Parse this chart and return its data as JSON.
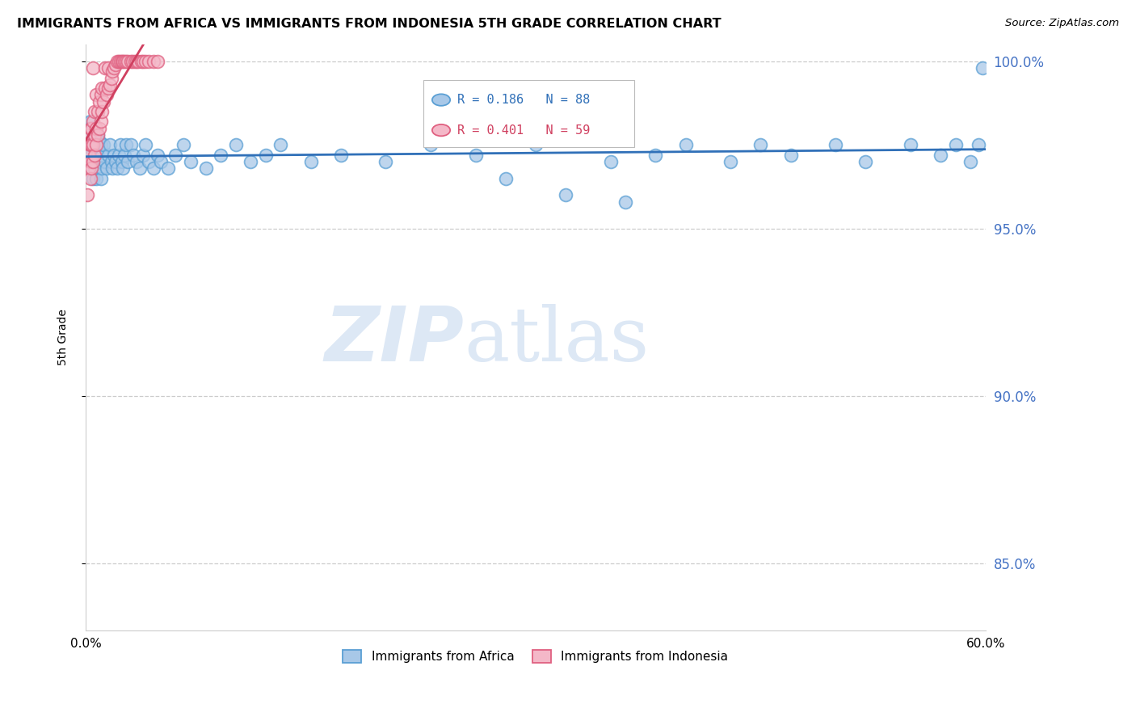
{
  "title": "IMMIGRANTS FROM AFRICA VS IMMIGRANTS FROM INDONESIA 5TH GRADE CORRELATION CHART",
  "source": "Source: ZipAtlas.com",
  "ylabel": "5th Grade",
  "xlim": [
    0.0,
    0.6
  ],
  "ylim": [
    0.83,
    1.005
  ],
  "yticks": [
    0.85,
    0.9,
    0.95,
    1.0
  ],
  "ytick_labels": [
    "85.0%",
    "90.0%",
    "95.0%",
    "100.0%"
  ],
  "xticks": [
    0.0,
    0.1,
    0.2,
    0.3,
    0.4,
    0.5,
    0.6
  ],
  "xtick_labels": [
    "0.0%",
    "",
    "",
    "",
    "",
    "",
    "60.0%"
  ],
  "legend_africa": "Immigrants from Africa",
  "legend_indonesia": "Immigrants from Indonesia",
  "R_africa": 0.186,
  "N_africa": 88,
  "R_indonesia": 0.401,
  "N_indonesia": 59,
  "africa_color": "#a8c8e8",
  "africa_edge": "#5a9fd4",
  "indonesia_color": "#f4b8c8",
  "indonesia_edge": "#e06080",
  "trendline_africa_color": "#3070b8",
  "trendline_indonesia_color": "#d04060",
  "watermark_zip": "ZIP",
  "watermark_atlas": "atlas",
  "watermark_color": "#dde8f5",
  "africa_x": [
    0.001,
    0.002,
    0.002,
    0.003,
    0.003,
    0.003,
    0.004,
    0.004,
    0.004,
    0.005,
    0.005,
    0.005,
    0.005,
    0.006,
    0.006,
    0.006,
    0.007,
    0.007,
    0.007,
    0.008,
    0.008,
    0.009,
    0.009,
    0.01,
    0.01,
    0.01,
    0.011,
    0.011,
    0.012,
    0.013,
    0.014,
    0.015,
    0.016,
    0.017,
    0.018,
    0.019,
    0.02,
    0.021,
    0.022,
    0.023,
    0.024,
    0.025,
    0.026,
    0.027,
    0.028,
    0.03,
    0.032,
    0.034,
    0.036,
    0.038,
    0.04,
    0.042,
    0.045,
    0.048,
    0.05,
    0.055,
    0.06,
    0.065,
    0.07,
    0.08,
    0.09,
    0.1,
    0.11,
    0.12,
    0.13,
    0.15,
    0.17,
    0.2,
    0.23,
    0.26,
    0.3,
    0.35,
    0.38,
    0.4,
    0.43,
    0.45,
    0.47,
    0.5,
    0.52,
    0.55,
    0.57,
    0.58,
    0.59,
    0.595,
    0.598,
    0.28,
    0.32,
    0.36
  ],
  "africa_y": [
    0.975,
    0.98,
    0.972,
    0.978,
    0.97,
    0.982,
    0.975,
    0.968,
    0.972,
    0.98,
    0.975,
    0.97,
    0.965,
    0.978,
    0.972,
    0.968,
    0.975,
    0.97,
    0.965,
    0.978,
    0.972,
    0.976,
    0.968,
    0.975,
    0.97,
    0.965,
    0.972,
    0.968,
    0.975,
    0.97,
    0.968,
    0.972,
    0.975,
    0.97,
    0.968,
    0.972,
    0.97,
    0.968,
    0.972,
    0.975,
    0.97,
    0.968,
    0.972,
    0.975,
    0.97,
    0.975,
    0.972,
    0.97,
    0.968,
    0.972,
    0.975,
    0.97,
    0.968,
    0.972,
    0.97,
    0.968,
    0.972,
    0.975,
    0.97,
    0.968,
    0.972,
    0.975,
    0.97,
    0.972,
    0.975,
    0.97,
    0.972,
    0.97,
    0.975,
    0.972,
    0.975,
    0.97,
    0.972,
    0.975,
    0.97,
    0.975,
    0.972,
    0.975,
    0.97,
    0.975,
    0.972,
    0.975,
    0.97,
    0.975,
    0.998,
    0.965,
    0.96,
    0.958
  ],
  "indonesia_x": [
    0.001,
    0.002,
    0.002,
    0.002,
    0.003,
    0.003,
    0.003,
    0.003,
    0.004,
    0.004,
    0.004,
    0.005,
    0.005,
    0.005,
    0.005,
    0.006,
    0.006,
    0.006,
    0.007,
    0.007,
    0.007,
    0.008,
    0.008,
    0.009,
    0.009,
    0.01,
    0.01,
    0.011,
    0.011,
    0.012,
    0.013,
    0.013,
    0.014,
    0.015,
    0.015,
    0.016,
    0.017,
    0.018,
    0.019,
    0.02,
    0.021,
    0.022,
    0.023,
    0.024,
    0.025,
    0.026,
    0.027,
    0.028,
    0.03,
    0.031,
    0.033,
    0.034,
    0.035,
    0.037,
    0.038,
    0.04,
    0.042,
    0.045,
    0.048
  ],
  "indonesia_y": [
    0.96,
    0.968,
    0.972,
    0.978,
    0.965,
    0.97,
    0.975,
    0.98,
    0.968,
    0.975,
    0.98,
    0.97,
    0.975,
    0.982,
    0.998,
    0.972,
    0.978,
    0.985,
    0.975,
    0.98,
    0.99,
    0.978,
    0.985,
    0.98,
    0.988,
    0.982,
    0.99,
    0.985,
    0.992,
    0.988,
    0.992,
    0.998,
    0.99,
    0.992,
    0.998,
    0.993,
    0.995,
    0.997,
    0.998,
    0.999,
    1.0,
    1.0,
    1.0,
    1.0,
    1.0,
    1.0,
    1.0,
    1.0,
    1.0,
    1.0,
    1.0,
    1.0,
    1.0,
    1.0,
    1.0,
    1.0,
    1.0,
    1.0,
    1.0
  ]
}
